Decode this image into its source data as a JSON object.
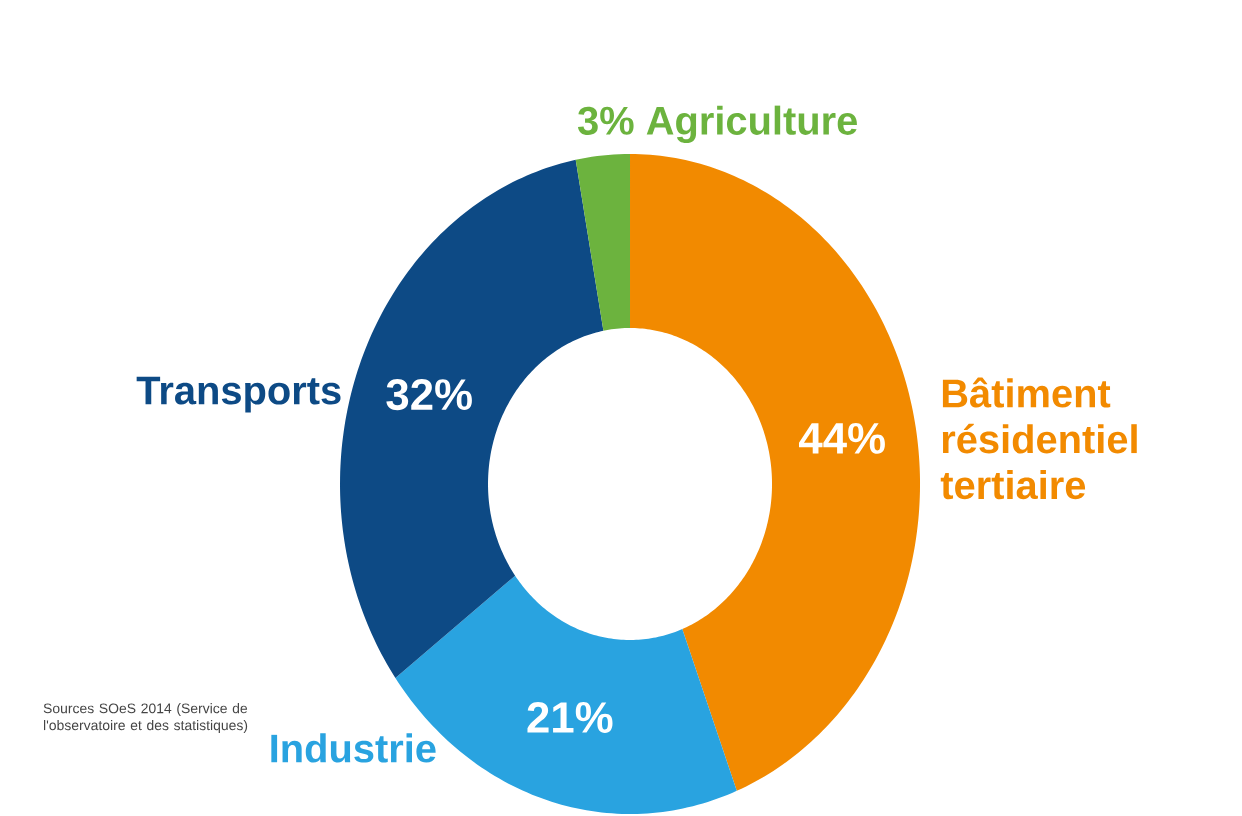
{
  "chart_data": {
    "type": "donut",
    "categories": [
      "Bâtiment résidentiel tertiaire",
      "Industrie",
      "Transports",
      "Agriculture"
    ],
    "values": [
      44,
      21,
      32,
      3
    ],
    "colors": [
      "#f28a00",
      "#29a3e0",
      "#0d4a85",
      "#6cb33e"
    ],
    "value_labels": [
      "44%",
      "21%",
      "32%",
      "3%"
    ],
    "annotations": [
      "Sources SOeS 2014 (Service de l'observatoire et des statistiques)"
    ]
  }
}
